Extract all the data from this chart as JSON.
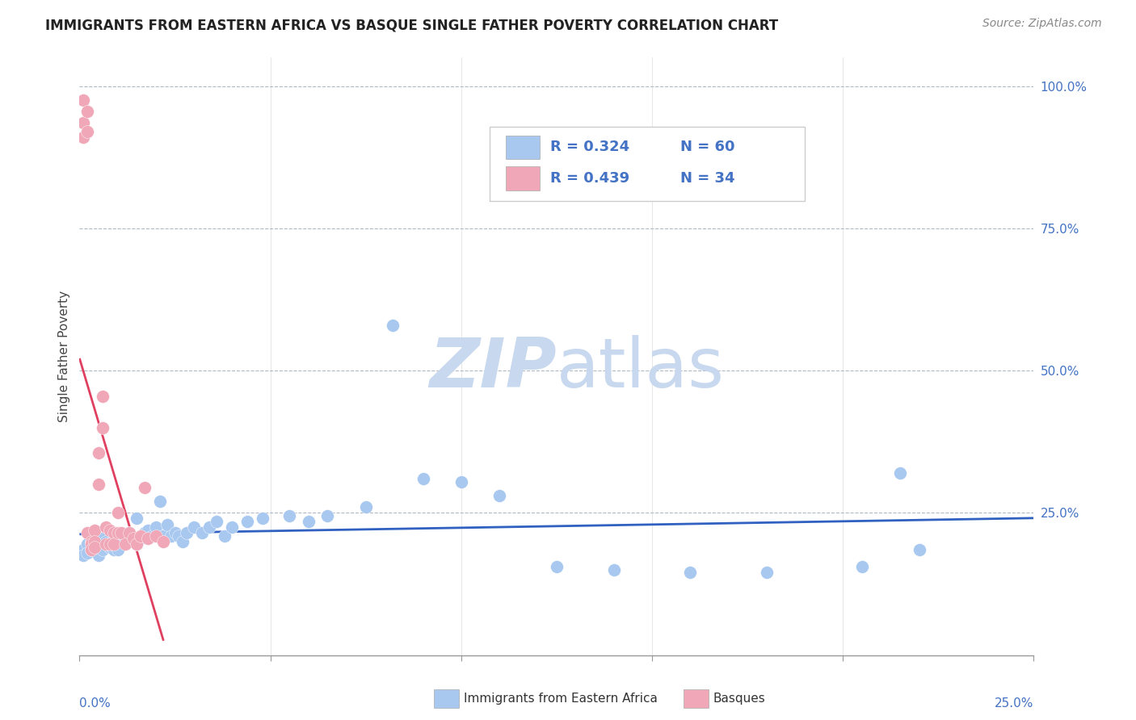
{
  "title": "IMMIGRANTS FROM EASTERN AFRICA VS BASQUE SINGLE FATHER POVERTY CORRELATION CHART",
  "source": "Source: ZipAtlas.com",
  "ylabel": "Single Father Poverty",
  "legend_blue_label": "Immigrants from Eastern Africa",
  "legend_pink_label": "Basques",
  "R_blue": "0.324",
  "N_blue": "60",
  "R_pink": "0.439",
  "N_pink": "34",
  "blue_color": "#A8C8F0",
  "pink_color": "#F0A8B8",
  "blue_line_color": "#3060C0",
  "pink_line_color": "#E04060",
  "label_color": "#4472C4",
  "watermark_color": "#C8D8EE",
  "xlim": [
    0.0,
    0.25
  ],
  "ylim": [
    0.0,
    1.05
  ],
  "blue_scatter_x": [
    0.001,
    0.001,
    0.002,
    0.002,
    0.003,
    0.003,
    0.004,
    0.004,
    0.005,
    0.005,
    0.006,
    0.006,
    0.007,
    0.008,
    0.009,
    0.009,
    0.01,
    0.01,
    0.011,
    0.012,
    0.013,
    0.014,
    0.015,
    0.015,
    0.016,
    0.017,
    0.018,
    0.019,
    0.02,
    0.021,
    0.022,
    0.023,
    0.024,
    0.025,
    0.026,
    0.027,
    0.028,
    0.03,
    0.032,
    0.034,
    0.036,
    0.038,
    0.04,
    0.044,
    0.048,
    0.055,
    0.06,
    0.065,
    0.075,
    0.082,
    0.09,
    0.1,
    0.11,
    0.125,
    0.14,
    0.16,
    0.18,
    0.205,
    0.215,
    0.22
  ],
  "blue_scatter_y": [
    0.185,
    0.175,
    0.195,
    0.18,
    0.2,
    0.185,
    0.2,
    0.19,
    0.195,
    0.175,
    0.205,
    0.185,
    0.2,
    0.19,
    0.205,
    0.185,
    0.2,
    0.185,
    0.21,
    0.2,
    0.215,
    0.2,
    0.24,
    0.195,
    0.205,
    0.215,
    0.22,
    0.21,
    0.225,
    0.27,
    0.21,
    0.23,
    0.21,
    0.215,
    0.21,
    0.2,
    0.215,
    0.225,
    0.215,
    0.225,
    0.235,
    0.21,
    0.225,
    0.235,
    0.24,
    0.245,
    0.235,
    0.245,
    0.26,
    0.58,
    0.31,
    0.305,
    0.28,
    0.155,
    0.15,
    0.145,
    0.145,
    0.155,
    0.32,
    0.185
  ],
  "pink_scatter_x": [
    0.001,
    0.001,
    0.001,
    0.002,
    0.002,
    0.002,
    0.003,
    0.003,
    0.003,
    0.004,
    0.004,
    0.004,
    0.005,
    0.005,
    0.006,
    0.006,
    0.007,
    0.007,
    0.008,
    0.008,
    0.009,
    0.009,
    0.01,
    0.01,
    0.011,
    0.012,
    0.013,
    0.014,
    0.015,
    0.016,
    0.017,
    0.018,
    0.02,
    0.022
  ],
  "pink_scatter_y": [
    0.975,
    0.935,
    0.91,
    0.955,
    0.92,
    0.215,
    0.2,
    0.195,
    0.185,
    0.22,
    0.2,
    0.19,
    0.355,
    0.3,
    0.455,
    0.4,
    0.225,
    0.195,
    0.22,
    0.195,
    0.215,
    0.195,
    0.25,
    0.215,
    0.215,
    0.195,
    0.215,
    0.205,
    0.195,
    0.21,
    0.295,
    0.205,
    0.21,
    0.2
  ],
  "pink_line_x0": 0.0,
  "pink_line_x1": 0.022,
  "blue_line_x0": 0.0,
  "blue_line_x1": 0.25
}
